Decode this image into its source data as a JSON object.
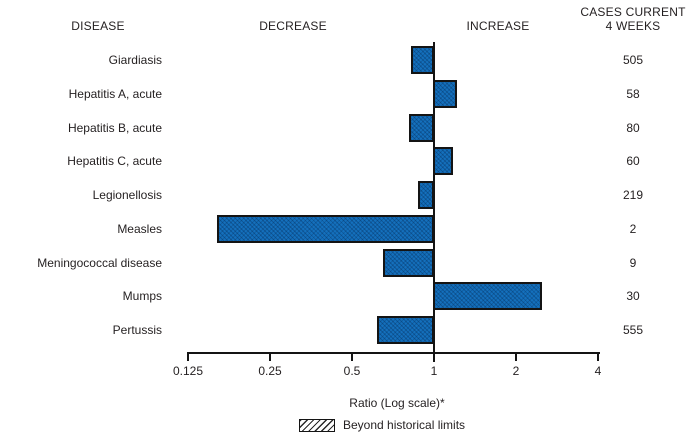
{
  "headers": {
    "disease": "DISEASE",
    "decrease": "DECREASE",
    "increase": "INCREASE",
    "cases_line1": "CASES CURRENT",
    "cases_line2": "4 WEEKS"
  },
  "axis": {
    "label": "Ratio (Log scale)*",
    "tick_labels": [
      "0.125",
      "0.25",
      "0.5",
      "1",
      "2",
      "4"
    ]
  },
  "legend": {
    "label": "Beyond historical limits",
    "swatch_style": "diagonal-hatch"
  },
  "colors": {
    "bar_fill": "#1470bd",
    "bar_border": "#141414",
    "axis": "#141414",
    "text": "#231f20"
  },
  "chart_data": {
    "type": "bar",
    "orientation": "horizontal",
    "x_scale": "log2",
    "xlabel": "Ratio (Log scale)*",
    "x_ticks": [
      0.125,
      0.25,
      0.5,
      1,
      2,
      4
    ],
    "x_range": [
      0.125,
      4
    ],
    "baseline": 1,
    "grid": false,
    "legend_entries": [
      "Beyond historical limits"
    ],
    "categories": [
      "Giardiasis",
      "Hepatitis A, acute",
      "Hepatitis B, acute",
      "Hepatitis C, acute",
      "Legionellosis",
      "Measles",
      "Meningococcal disease",
      "Mumps",
      "Pertussis"
    ],
    "ratios": [
      0.82,
      1.21,
      0.81,
      1.17,
      0.87,
      0.16,
      0.65,
      2.5,
      0.62
    ],
    "cases_current_4_weeks": [
      505,
      58,
      80,
      60,
      219,
      2,
      9,
      30,
      555
    ],
    "bars_beyond_historical_limits": []
  }
}
